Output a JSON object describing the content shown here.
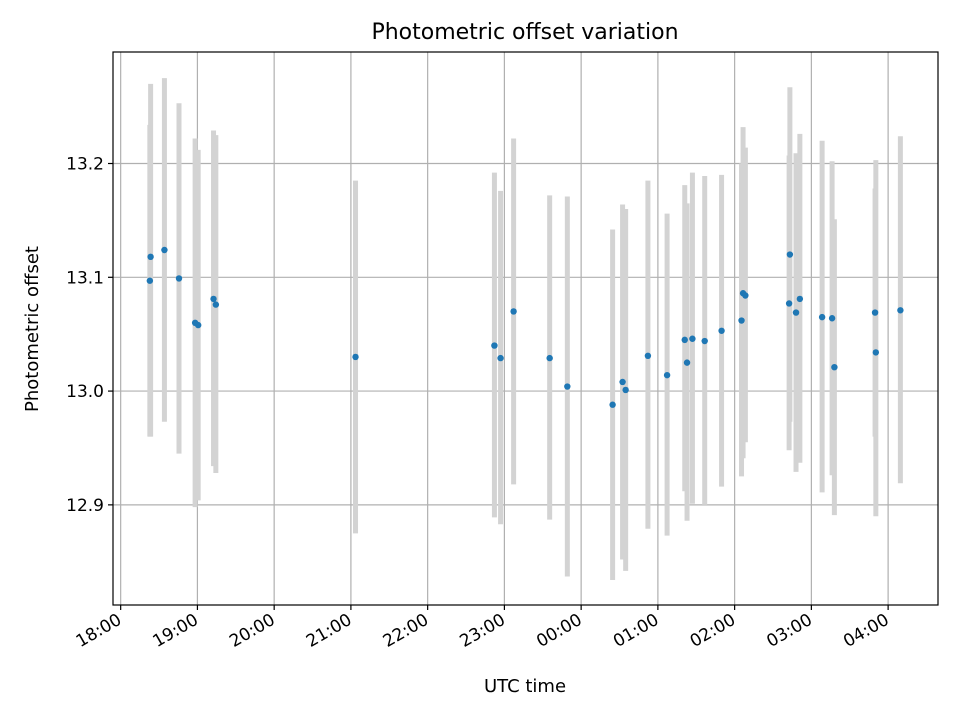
{
  "chart_data": {
    "type": "scatter",
    "title": "Photometric offset variation",
    "xlabel": "UTC time",
    "ylabel": "Photometric offset",
    "x_unit": "hours since 18:00 UTC",
    "xlim": [
      -0.1,
      10.65
    ],
    "ylim": [
      12.812,
      13.298
    ],
    "grid": true,
    "x_tick_positions": [
      0,
      1,
      2,
      3,
      4,
      5,
      6,
      7,
      8,
      9,
      10
    ],
    "x_tick_labels": [
      "18:00",
      "19:00",
      "20:00",
      "21:00",
      "22:00",
      "23:00",
      "00:00",
      "01:00",
      "02:00",
      "03:00",
      "04:00"
    ],
    "y_ticks": [
      12.9,
      13.0,
      13.1,
      13.2
    ],
    "y_tick_labels": [
      "12.9",
      "13.0",
      "13.1",
      "13.2"
    ],
    "marker_color": "#1f77b4",
    "errorbar_color": "#d3d3d3",
    "points": [
      {
        "t": 0.38,
        "y": 13.097,
        "lo": 12.96,
        "hi": 13.234
      },
      {
        "t": 0.39,
        "y": 13.118,
        "lo": 12.96,
        "hi": 13.27
      },
      {
        "t": 0.57,
        "y": 13.124,
        "lo": 12.973,
        "hi": 13.275
      },
      {
        "t": 0.76,
        "y": 13.099,
        "lo": 12.945,
        "hi": 13.253
      },
      {
        "t": 0.97,
        "y": 13.06,
        "lo": 12.898,
        "hi": 13.222
      },
      {
        "t": 1.01,
        "y": 13.058,
        "lo": 12.904,
        "hi": 13.212
      },
      {
        "t": 1.21,
        "y": 13.081,
        "lo": 12.934,
        "hi": 13.229
      },
      {
        "t": 1.24,
        "y": 13.076,
        "lo": 12.928,
        "hi": 13.225
      },
      {
        "t": 3.06,
        "y": 13.03,
        "lo": 12.875,
        "hi": 13.185
      },
      {
        "t": 4.87,
        "y": 13.04,
        "lo": 12.889,
        "hi": 13.192
      },
      {
        "t": 4.95,
        "y": 13.029,
        "lo": 12.883,
        "hi": 13.176
      },
      {
        "t": 5.12,
        "y": 13.07,
        "lo": 12.918,
        "hi": 13.222
      },
      {
        "t": 5.59,
        "y": 13.029,
        "lo": 12.887,
        "hi": 13.172
      },
      {
        "t": 5.82,
        "y": 13.004,
        "lo": 12.837,
        "hi": 13.171
      },
      {
        "t": 6.41,
        "y": 12.988,
        "lo": 12.834,
        "hi": 13.142
      },
      {
        "t": 6.54,
        "y": 13.008,
        "lo": 12.852,
        "hi": 13.164
      },
      {
        "t": 6.58,
        "y": 13.001,
        "lo": 12.842,
        "hi": 13.16
      },
      {
        "t": 6.87,
        "y": 13.031,
        "lo": 12.879,
        "hi": 13.185
      },
      {
        "t": 7.12,
        "y": 13.014,
        "lo": 12.873,
        "hi": 13.156
      },
      {
        "t": 7.35,
        "y": 13.045,
        "lo": 12.912,
        "hi": 13.181
      },
      {
        "t": 7.38,
        "y": 13.025,
        "lo": 12.886,
        "hi": 13.165
      },
      {
        "t": 7.45,
        "y": 13.046,
        "lo": 12.901,
        "hi": 13.192
      },
      {
        "t": 7.61,
        "y": 13.044,
        "lo": 12.9,
        "hi": 13.189
      },
      {
        "t": 7.83,
        "y": 13.053,
        "lo": 12.916,
        "hi": 13.19
      },
      {
        "t": 8.09,
        "y": 13.062,
        "lo": 12.925,
        "hi": 13.2
      },
      {
        "t": 8.11,
        "y": 13.086,
        "lo": 12.941,
        "hi": 13.232
      },
      {
        "t": 8.14,
        "y": 13.084,
        "lo": 12.955,
        "hi": 13.214
      },
      {
        "t": 8.71,
        "y": 13.077,
        "lo": 12.948,
        "hi": 13.207
      },
      {
        "t": 8.72,
        "y": 13.12,
        "lo": 12.973,
        "hi": 13.267
      },
      {
        "t": 8.8,
        "y": 13.069,
        "lo": 12.929,
        "hi": 13.209
      },
      {
        "t": 8.85,
        "y": 13.081,
        "lo": 12.937,
        "hi": 13.226
      },
      {
        "t": 9.14,
        "y": 13.065,
        "lo": 12.911,
        "hi": 13.22
      },
      {
        "t": 9.27,
        "y": 13.064,
        "lo": 12.926,
        "hi": 13.202
      },
      {
        "t": 9.3,
        "y": 13.021,
        "lo": 12.891,
        "hi": 13.151
      },
      {
        "t": 9.83,
        "y": 13.069,
        "lo": 12.96,
        "hi": 13.178
      },
      {
        "t": 9.84,
        "y": 13.034,
        "lo": 12.89,
        "hi": 13.203
      },
      {
        "t": 10.16,
        "y": 13.071,
        "lo": 12.919,
        "hi": 13.224
      }
    ]
  }
}
